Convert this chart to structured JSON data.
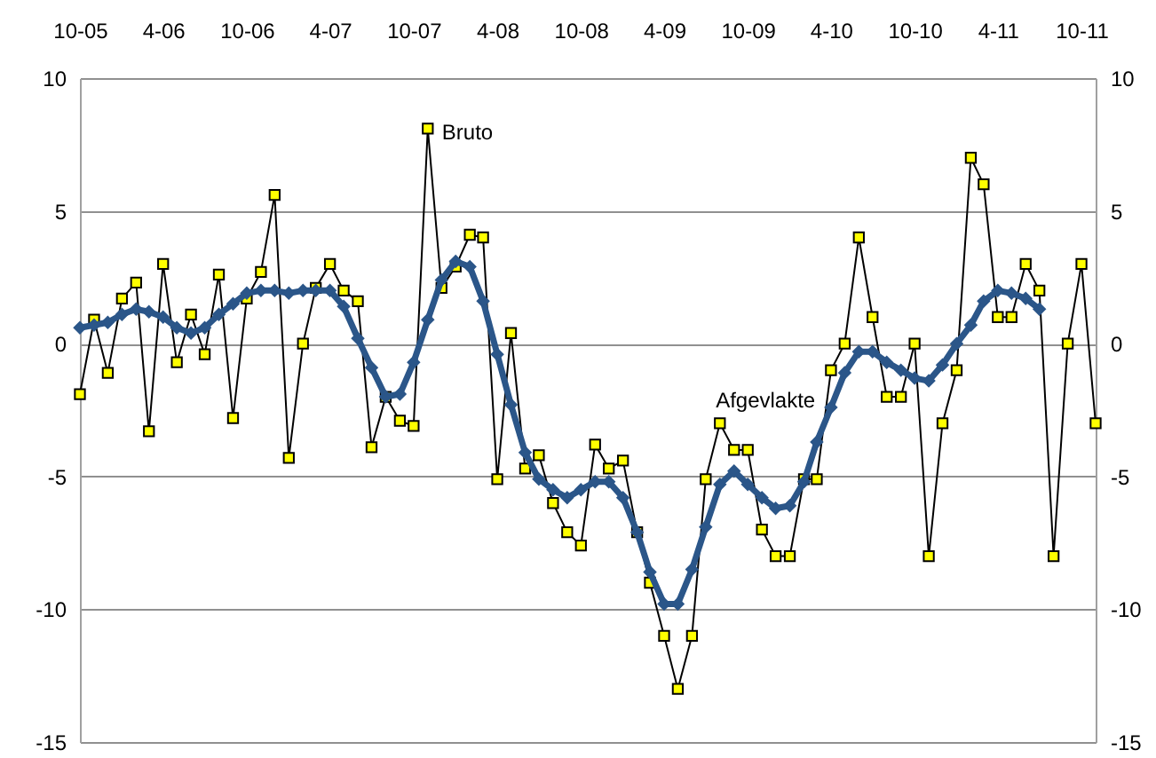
{
  "chart_data": {
    "type": "line",
    "x": [
      "2005-10",
      "2005-11",
      "2005-12",
      "2006-01",
      "2006-02",
      "2006-03",
      "2006-04",
      "2006-05",
      "2006-06",
      "2006-07",
      "2006-08",
      "2006-09",
      "2006-10",
      "2006-11",
      "2006-12",
      "2007-01",
      "2007-02",
      "2007-03",
      "2007-04",
      "2007-05",
      "2007-06",
      "2007-07",
      "2007-08",
      "2007-09",
      "2007-10",
      "2007-11",
      "2007-12",
      "2008-01",
      "2008-02",
      "2008-03",
      "2008-04",
      "2008-05",
      "2008-06",
      "2008-07",
      "2008-08",
      "2008-09",
      "2008-10",
      "2008-11",
      "2008-12",
      "2009-01",
      "2009-02",
      "2009-03",
      "2009-04",
      "2009-05",
      "2009-06",
      "2009-07",
      "2009-08",
      "2009-09",
      "2009-10",
      "2009-11",
      "2009-12",
      "2010-01",
      "2010-02",
      "2010-03",
      "2010-04",
      "2010-05",
      "2010-06",
      "2010-07",
      "2010-08",
      "2010-09",
      "2010-10",
      "2010-11",
      "2010-12",
      "2011-01",
      "2011-02",
      "2011-03",
      "2011-04",
      "2011-05",
      "2011-06",
      "2011-07",
      "2011-08",
      "2011-09",
      "2011-10",
      "2011-11"
    ],
    "series": [
      {
        "name": "Bruto",
        "color": "#ffff00",
        "marker": "square",
        "values": [
          -1.9,
          0.9,
          -1.1,
          1.7,
          2.3,
          -3.3,
          3,
          -0.7,
          1.1,
          -0.4,
          2.6,
          -2.8,
          1.7,
          2.7,
          5.6,
          -4.3,
          0,
          2.1,
          3,
          2,
          1.6,
          -3.9,
          -2,
          -2.9,
          -3.1,
          8.1,
          2.1,
          2.9,
          4.1,
          4,
          -5.1,
          0.4,
          -4.7,
          -4.2,
          -6,
          -7.1,
          -7.6,
          -3.8,
          -4.7,
          -4.4,
          -7.1,
          -9,
          -11,
          -13,
          -11,
          -5.1,
          -3,
          -4,
          -4,
          -7,
          -8,
          -8,
          -5.1,
          -5.1,
          -1,
          0,
          4,
          1,
          -2,
          -2,
          0,
          -8,
          -3,
          -1,
          7,
          6,
          1,
          1,
          3,
          2,
          -8,
          0,
          3,
          -3
        ]
      },
      {
        "name": "Afgevlakte",
        "color": "#2b5689",
        "marker": "diamond",
        "values": [
          0.6,
          0.7,
          0.8,
          1.1,
          1.3,
          1.2,
          1,
          0.6,
          0.4,
          0.6,
          1.1,
          1.5,
          1.9,
          2,
          2,
          1.9,
          2,
          2,
          2,
          1.4,
          0.2,
          -0.9,
          -2,
          -1.9,
          -0.7,
          0.9,
          2.4,
          3.1,
          2.9,
          1.6,
          -0.4,
          -2.3,
          -4.1,
          -5.1,
          -5.5,
          -5.8,
          -5.5,
          -5.2,
          -5.2,
          -5.8,
          -7.1,
          -8.6,
          -9.8,
          -9.8,
          -8.5,
          -6.9,
          -5.3,
          -4.8,
          -5.3,
          -5.8,
          -6.2,
          -6.1,
          -5.2,
          -3.7,
          -2.4,
          -1.1,
          -0.3,
          -0.3,
          -0.7,
          -1,
          -1.3,
          -1.4,
          -0.8,
          0,
          0.7,
          1.6,
          2,
          1.9,
          1.7,
          1.3,
          null,
          null,
          null,
          null
        ]
      }
    ],
    "xlim": [
      "2005-10",
      "2011-11"
    ],
    "xticks": [
      {
        "value": "2005-10",
        "label": "10-05"
      },
      {
        "value": "2006-04",
        "label": "4-06"
      },
      {
        "value": "2006-10",
        "label": "10-06"
      },
      {
        "value": "2007-04",
        "label": "4-07"
      },
      {
        "value": "2007-10",
        "label": "10-07"
      },
      {
        "value": "2008-04",
        "label": "4-08"
      },
      {
        "value": "2008-10",
        "label": "10-08"
      },
      {
        "value": "2009-04",
        "label": "4-09"
      },
      {
        "value": "2009-10",
        "label": "10-09"
      },
      {
        "value": "2010-04",
        "label": "4-10"
      },
      {
        "value": "2010-10",
        "label": "10-10"
      },
      {
        "value": "2011-04",
        "label": "4-11"
      },
      {
        "value": "2011-10",
        "label": "10-11"
      }
    ],
    "ylim": [
      -15,
      10
    ],
    "yticks": [
      -15,
      -10,
      -5,
      0,
      5,
      10
    ],
    "y2lim": [
      -15,
      10
    ],
    "y2ticks": [
      -15,
      -10,
      -5,
      0,
      5,
      10
    ],
    "grid": "y"
  }
}
